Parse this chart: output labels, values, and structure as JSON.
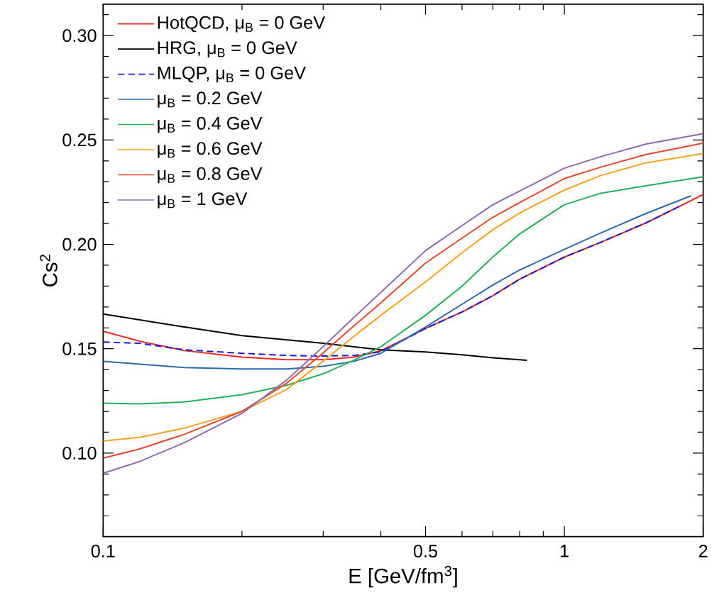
{
  "chart_data": {
    "type": "line",
    "xlabel": "E [GeV/fm$^{3}$]",
    "ylabel": "Cs$^{2}$",
    "log": "x",
    "legend": "top left",
    "xlim": [
      0.1,
      2
    ],
    "ylim": [
      0.06,
      0.315
    ],
    "xticks": [
      0.1,
      {
        "value": 0.2,
        "label": null
      },
      {
        "value": 0.3,
        "label": null
      },
      {
        "value": 0.4,
        "label": null
      },
      0.5,
      {
        "value": 0.6,
        "label": null
      },
      {
        "value": 0.7,
        "label": null
      },
      {
        "value": 0.8,
        "label": null
      },
      {
        "value": 0.9,
        "label": null
      },
      1,
      2
    ],
    "yticks": [
      {
        "value": 0.07,
        "label": null
      },
      {
        "value": 0.08,
        "label": null
      },
      {
        "value": 0.09,
        "label": null
      },
      {
        "value": 0.1,
        "label": "0.10"
      },
      {
        "value": 0.11,
        "label": null
      },
      {
        "value": 0.12,
        "label": null
      },
      {
        "value": 0.13,
        "label": null
      },
      {
        "value": 0.14,
        "label": null
      },
      {
        "value": 0.15,
        "label": "0.15"
      },
      {
        "value": 0.16,
        "label": null
      },
      {
        "value": 0.17,
        "label": null
      },
      {
        "value": 0.18,
        "label": null
      },
      {
        "value": 0.19,
        "label": null
      },
      {
        "value": 0.2,
        "label": "0.20"
      },
      {
        "value": 0.21,
        "label": null
      },
      {
        "value": 0.22,
        "label": null
      },
      {
        "value": 0.23,
        "label": null
      },
      {
        "value": 0.24,
        "label": null
      },
      {
        "value": 0.25,
        "label": "0.25"
      },
      {
        "value": 0.26,
        "label": null
      },
      {
        "value": 0.27,
        "label": null
      },
      {
        "value": 0.28,
        "label": null
      },
      {
        "value": 0.29,
        "label": null
      },
      {
        "value": 0.3,
        "label": "0.30"
      },
      {
        "value": 0.31,
        "label": null
      }
    ],
    "series": [
      {
        "name": "HotQCD, μ$_{B}$ = 0 GeV",
        "color": "#e8251f",
        "x": [
          0.1,
          0.12,
          0.15,
          0.2,
          0.25,
          0.3,
          0.35,
          0.4,
          0.5,
          0.6,
          0.7,
          0.8,
          1.0,
          1.2,
          1.5,
          1.8,
          2.0
        ],
        "values": [
          0.1584,
          0.1536,
          0.1491,
          0.146,
          0.1447,
          0.1447,
          0.146,
          0.149,
          0.1597,
          0.1676,
          0.1754,
          0.1833,
          0.1939,
          0.201,
          0.2102,
          0.2188,
          0.2239
        ]
      },
      {
        "name": "HRG, μ$_{B}$ = 0 GeV",
        "color": "#000000",
        "x": [
          0.1,
          0.15,
          0.2,
          0.3,
          0.4,
          0.5,
          0.6,
          0.7,
          0.83
        ],
        "values": [
          0.1666,
          0.1604,
          0.1563,
          0.1526,
          0.1495,
          0.1485,
          0.1471,
          0.1457,
          0.1445
        ]
      },
      {
        "name": "MLQP, μ$_{B}$ = 0 GeV",
        "color": "#1a1adc",
        "line_style": "dashed",
        "x": [
          0.1,
          0.12,
          0.15,
          0.2,
          0.25,
          0.3,
          0.35,
          0.4,
          0.5,
          0.6,
          0.7,
          0.8,
          1.0,
          1.2,
          1.5,
          1.8
        ],
        "values": [
          0.1532,
          0.1526,
          0.1495,
          0.1478,
          0.1468,
          0.1465,
          0.1468,
          0.1485,
          0.1597,
          0.1676,
          0.1754,
          0.1833,
          0.1939,
          0.201,
          0.2102,
          0.2188
        ]
      },
      {
        "name": "μ$_{B}$ = 0.2 GeV",
        "color": "#2a6aad",
        "x": [
          0.1,
          0.15,
          0.2,
          0.25,
          0.3,
          0.35,
          0.4,
          0.5,
          0.6,
          0.7,
          0.8,
          1.0,
          1.2,
          1.5,
          1.88
        ],
        "values": [
          0.144,
          0.141,
          0.1403,
          0.1403,
          0.1416,
          0.144,
          0.1478,
          0.1604,
          0.1713,
          0.1805,
          0.1877,
          0.1976,
          0.2055,
          0.2147,
          0.2232
        ]
      },
      {
        "name": "μ$_{B}$ = 0.4 GeV",
        "color": "#22b05a",
        "x": [
          0.1,
          0.12,
          0.15,
          0.2,
          0.25,
          0.3,
          0.35,
          0.4,
          0.5,
          0.6,
          0.7,
          0.8,
          1.0,
          1.2,
          1.5,
          2.0
        ],
        "values": [
          0.1239,
          0.1236,
          0.1245,
          0.128,
          0.1325,
          0.138,
          0.1445,
          0.151,
          0.166,
          0.18,
          0.194,
          0.205,
          0.219,
          0.2245,
          0.228,
          0.2324
        ]
      },
      {
        "name": "μ$_{B}$ = 0.6 GeV",
        "color": "#f5a21e",
        "x": [
          0.1,
          0.12,
          0.15,
          0.2,
          0.25,
          0.3,
          0.35,
          0.4,
          0.5,
          0.6,
          0.7,
          0.8,
          1.0,
          1.2,
          1.5,
          2.0
        ],
        "values": [
          0.1058,
          0.1075,
          0.112,
          0.12,
          0.1305,
          0.144,
          0.156,
          0.166,
          0.182,
          0.196,
          0.207,
          0.215,
          0.226,
          0.233,
          0.239,
          0.2435
        ]
      },
      {
        "name": "μ$_{B}$ = 0.8 GeV",
        "color": "#e4472a",
        "x": [
          0.1,
          0.12,
          0.15,
          0.2,
          0.25,
          0.3,
          0.35,
          0.4,
          0.5,
          0.6,
          0.7,
          0.8,
          1.0,
          1.2,
          1.5,
          2.0
        ],
        "values": [
          0.0976,
          0.102,
          0.109,
          0.12,
          0.1335,
          0.148,
          0.161,
          0.172,
          0.191,
          0.203,
          0.213,
          0.22,
          0.2315,
          0.237,
          0.243,
          0.2485
        ]
      },
      {
        "name": "μ$_{B}$ = 1 GeV",
        "color": "#8e6ba8",
        "x": [
          0.1,
          0.12,
          0.15,
          0.2,
          0.25,
          0.3,
          0.35,
          0.4,
          0.5,
          0.6,
          0.7,
          0.8,
          1.0,
          1.2,
          1.5,
          2.0
        ],
        "values": [
          0.0904,
          0.096,
          0.105,
          0.119,
          0.135,
          0.151,
          0.165,
          0.177,
          0.197,
          0.209,
          0.219,
          0.2255,
          0.2365,
          0.242,
          0.248,
          0.253
        ]
      }
    ]
  }
}
